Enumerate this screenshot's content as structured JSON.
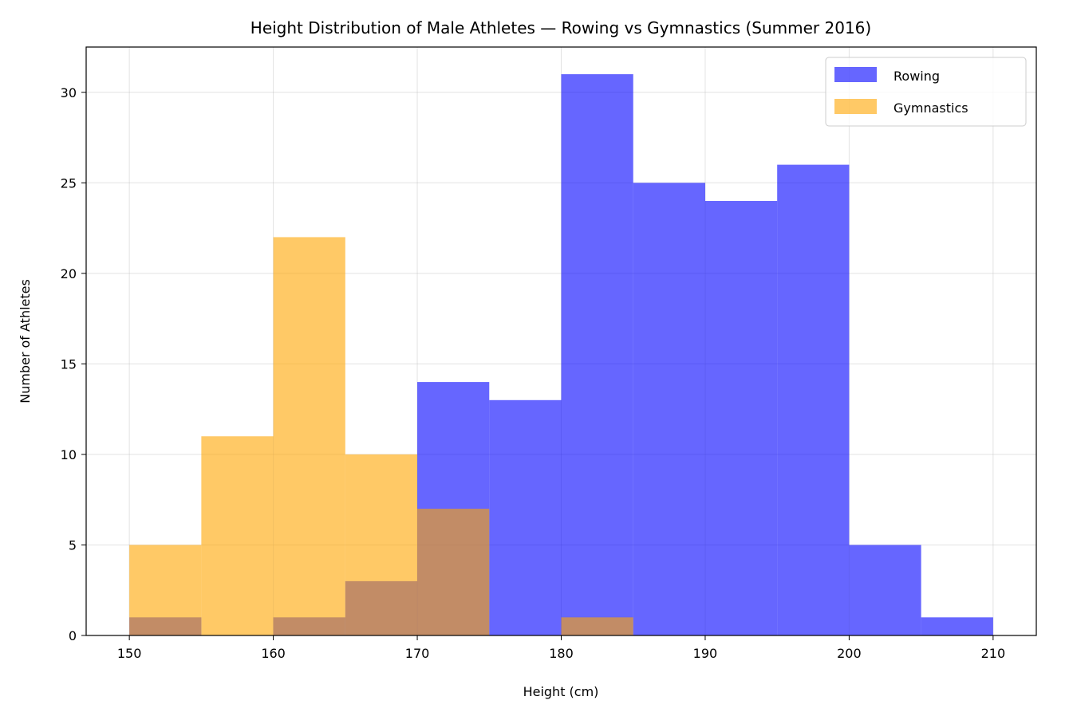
{
  "chart_data": {
    "type": "bar",
    "subtype": "overlapping-histogram",
    "title": "Height Distribution of Male Athletes — Rowing vs Gymnastics (Summer 2016)",
    "xlabel": "Height (cm)",
    "ylabel": "Number of Athletes",
    "xlim": [
      147,
      213
    ],
    "ylim": [
      0,
      32.5
    ],
    "xticks": [
      150,
      160,
      170,
      180,
      190,
      200,
      210
    ],
    "yticks": [
      0,
      5,
      10,
      15,
      20,
      25,
      30
    ],
    "grid": true,
    "legend_position": "top-right",
    "bin_edges": [
      150,
      155,
      160,
      165,
      170,
      175,
      180,
      185,
      190,
      195,
      200,
      205,
      210
    ],
    "series": [
      {
        "name": "Rowing",
        "color": "#0000ff",
        "alpha": 0.6,
        "values": [
          1,
          0,
          1,
          3,
          14,
          13,
          31,
          25,
          24,
          26,
          5,
          1
        ]
      },
      {
        "name": "Gymnastics",
        "color": "#ffa500",
        "alpha": 0.6,
        "values": [
          5,
          11,
          22,
          10,
          7,
          0,
          1,
          0,
          0,
          0,
          0,
          0
        ]
      }
    ]
  }
}
